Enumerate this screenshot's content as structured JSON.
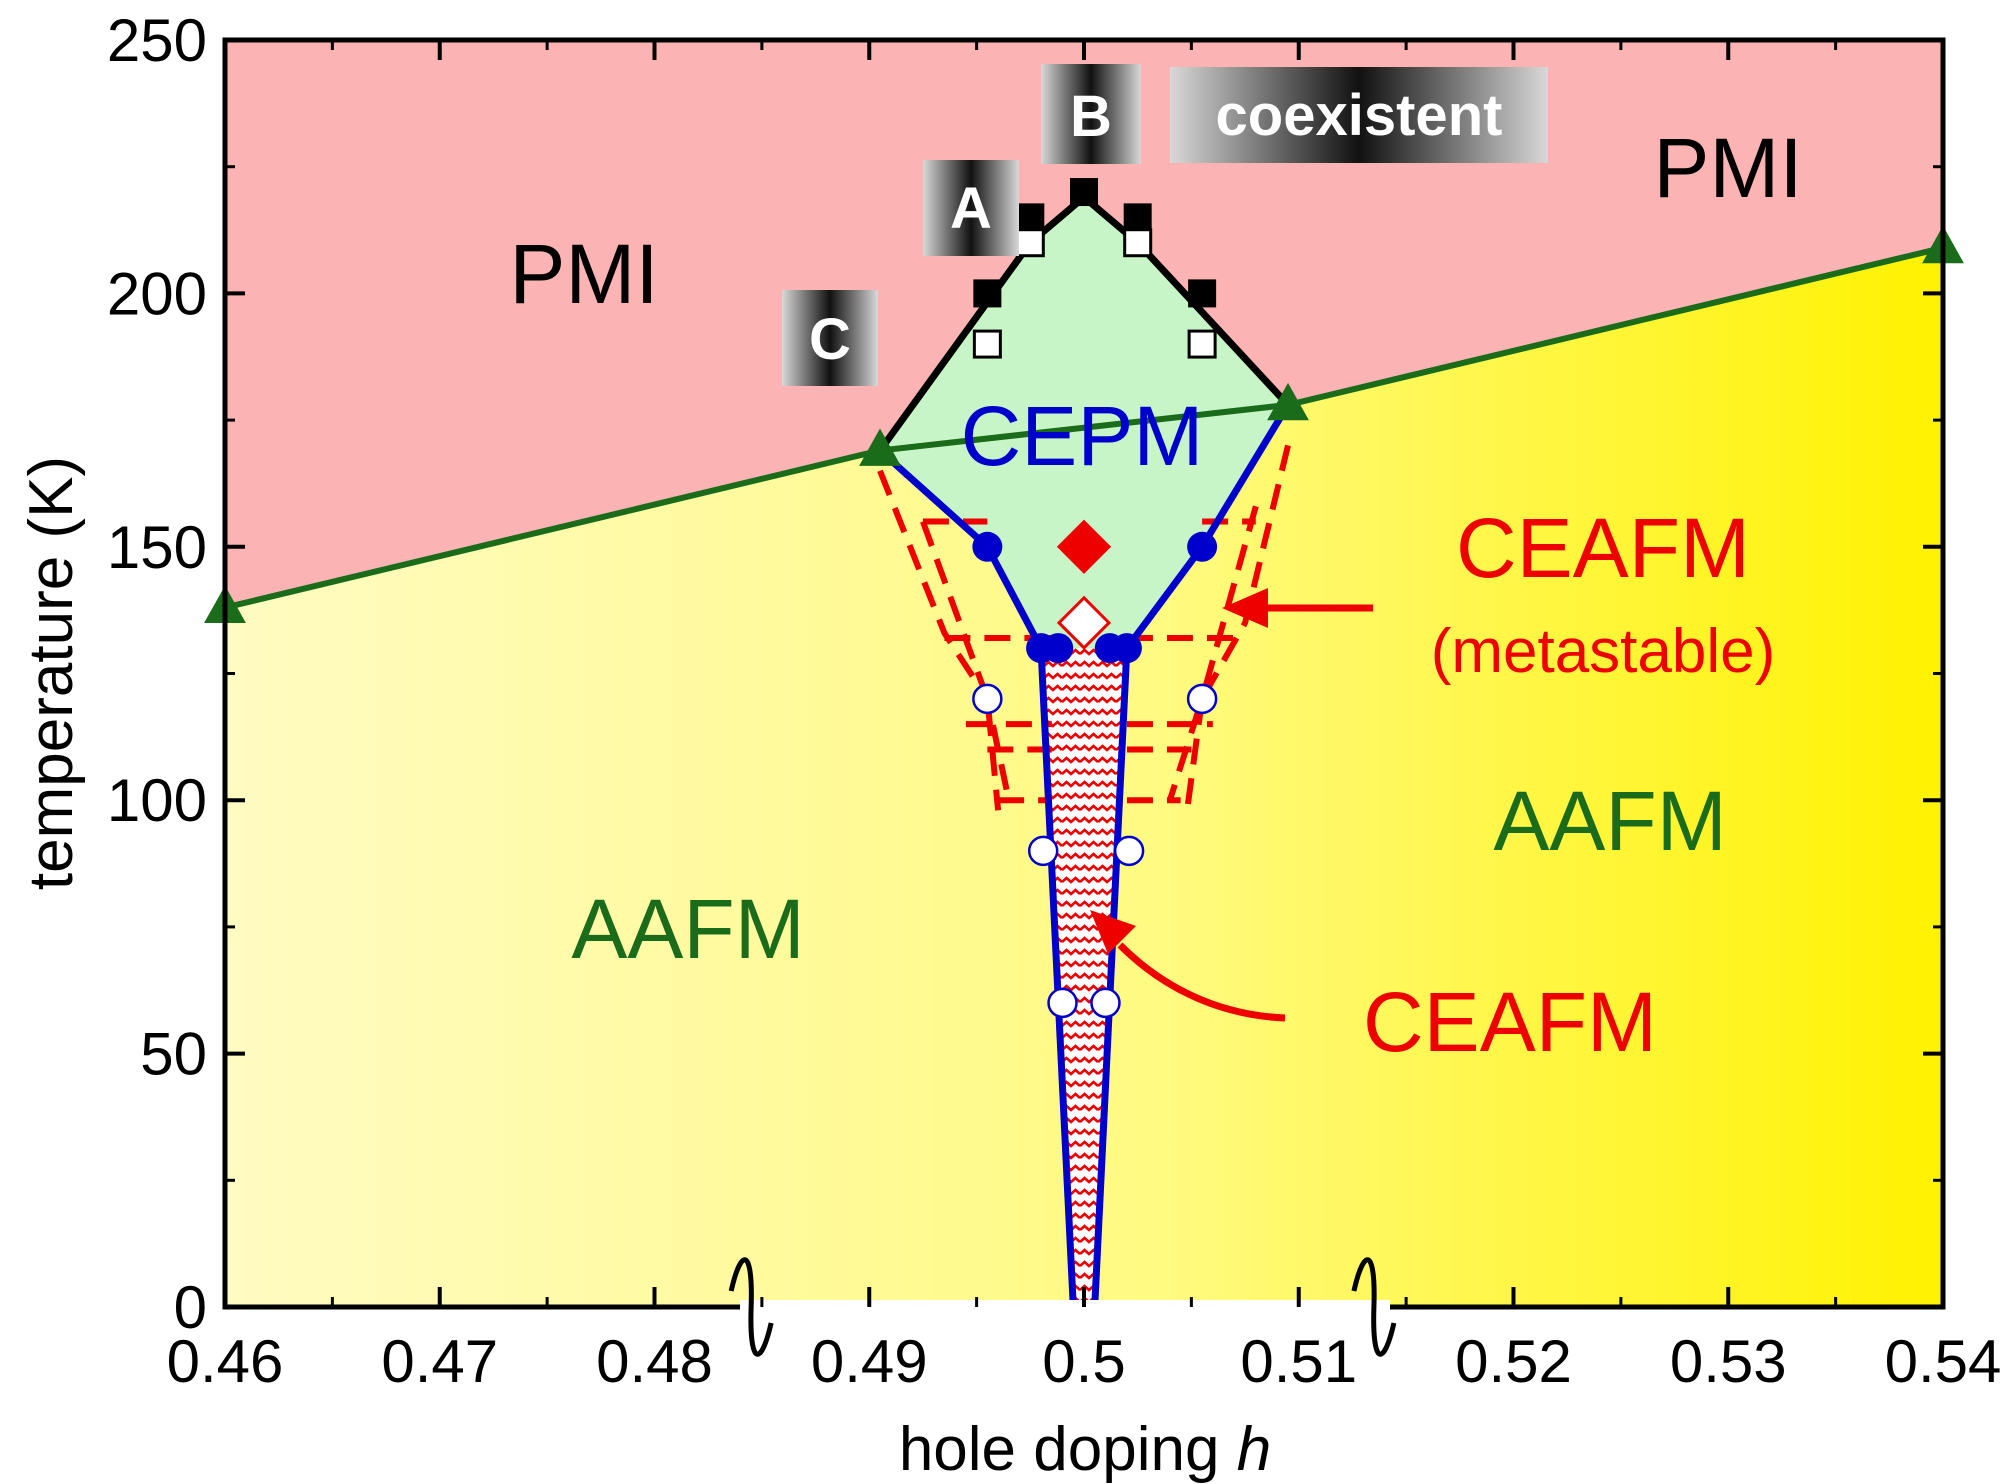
{
  "chart_data": {
    "type": "phase-diagram",
    "xlabel": "hole doping",
    "xlabel_symbol": "h",
    "ylabel": "temperature (K)",
    "xlim": [
      0.46,
      0.54
    ],
    "ylim": [
      0,
      250
    ],
    "x_ticks": [
      "0.46",
      "0.47",
      "0.48",
      "0.49",
      "0.5",
      "0.51",
      "0.52",
      "0.53",
      "0.54"
    ],
    "y_ticks": [
      "0",
      "50",
      "100",
      "150",
      "200",
      "250"
    ],
    "axis_breaks_x": [
      0.4845,
      0.5135
    ],
    "regions": {
      "pmi_left": "PMI",
      "pmi_right": "PMI",
      "cepm": "CEPM",
      "ceafm_metastable": "CEAFM",
      "metastable_note": "(metastable)",
      "aafm_left": "AAFM",
      "aafm_right": "AAFM",
      "ceafm": "CEAFM"
    },
    "badges": {
      "a": "A",
      "b": "B",
      "c": "C",
      "coexistent": "coexistent"
    },
    "series": {
      "pmi_boundary_triangles": [
        [
          0.46,
          138
        ],
        [
          0.4905,
          169
        ],
        [
          0.5095,
          178
        ],
        [
          0.54,
          209
        ]
      ],
      "black_line": [
        [
          0.4905,
          169
        ],
        [
          0.4975,
          210
        ],
        [
          0.5,
          219
        ],
        [
          0.5025,
          210
        ],
        [
          0.5095,
          178
        ]
      ],
      "filled_squares": [
        [
          0.4955,
          200
        ],
        [
          0.4975,
          215
        ],
        [
          0.5,
          220
        ],
        [
          0.5025,
          215
        ],
        [
          0.5055,
          200
        ]
      ],
      "open_squares": [
        [
          0.4955,
          190
        ],
        [
          0.4975,
          210
        ],
        [
          0.5025,
          210
        ],
        [
          0.5055,
          190
        ]
      ],
      "blue_line_left": [
        [
          0.4905,
          169
        ],
        [
          0.4955,
          150
        ],
        [
          0.498,
          130
        ],
        [
          0.4995,
          0
        ]
      ],
      "blue_line_right": [
        [
          0.5095,
          178
        ],
        [
          0.5055,
          150
        ],
        [
          0.502,
          130
        ],
        [
          0.5005,
          0
        ]
      ],
      "filled_circles": [
        [
          0.4955,
          150
        ],
        [
          0.498,
          130
        ],
        [
          0.4988,
          130
        ],
        [
          0.5012,
          130
        ],
        [
          0.502,
          130
        ],
        [
          0.5055,
          150
        ]
      ],
      "open_circles": [
        [
          0.4955,
          120
        ],
        [
          0.5055,
          120
        ],
        [
          0.4981,
          90
        ],
        [
          0.5021,
          90
        ],
        [
          0.499,
          60
        ],
        [
          0.501,
          60
        ]
      ],
      "filled_diamond": [
        0.5,
        150
      ],
      "open_diamond": [
        0.5,
        135
      ]
    },
    "colors": {
      "pmi": "#fbb3b3",
      "cepm": "#c8f5c8",
      "aafm_light": "#fffbc2",
      "aafm_dark": "#fff200",
      "triangle": "#1a6b1a",
      "blue": "#0000cc",
      "red": "#ee0000",
      "aafm_text": "#1a6b1a"
    }
  }
}
